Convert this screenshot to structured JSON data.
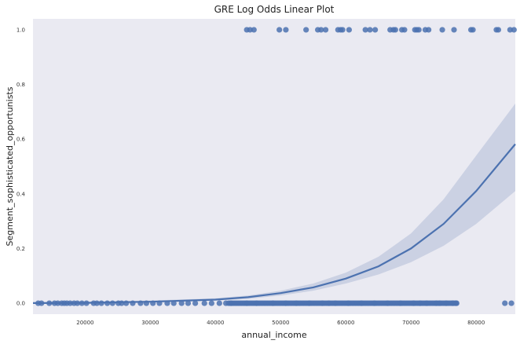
{
  "chart_data": {
    "type": "scatter",
    "title": "GRE Log Odds Linear Plot",
    "xlabel": "annual_income",
    "ylabel": "Segment_sophisticated_opportunists",
    "xlim": [
      12000,
      86000
    ],
    "ylim": [
      -0.04,
      1.04
    ],
    "x_ticks": [
      20000,
      30000,
      40000,
      50000,
      60000,
      70000,
      80000
    ],
    "x_tick_labels": [
      "20000",
      "30000",
      "40000",
      "50000",
      "60000",
      "70000",
      "80000"
    ],
    "y_ticks": [
      0.0,
      0.2,
      0.4,
      0.6,
      0.8,
      1.0
    ],
    "y_tick_labels": [
      "0.0",
      "0.2",
      "0.4",
      "0.6",
      "0.8",
      "1.0"
    ],
    "grid": false,
    "colors": {
      "background": "#EAEAF2",
      "points": "#4C72B0",
      "fit_line": "#4C72B0",
      "ci_band": "#C5CCE0"
    },
    "points_y1_x": [
      44800,
      45300,
      45900,
      49800,
      50800,
      53900,
      55700,
      56200,
      56900,
      58800,
      59200,
      59500,
      60500,
      63000,
      63700,
      64500,
      66800,
      67300,
      67600,
      68600,
      69000,
      70600,
      70900,
      71200,
      72200,
      72700,
      74800,
      76600,
      79200,
      79500,
      83100,
      83400,
      85200,
      85800
    ],
    "points_y0_x": [
      12800,
      13300,
      14500,
      15300,
      15800,
      16400,
      16800,
      17200,
      17700,
      18300,
      18800,
      19500,
      20200,
      21300,
      21800,
      22500,
      23400,
      24200,
      25100,
      25600,
      26300,
      27300,
      28500,
      29400,
      30400,
      31400,
      32600,
      33600,
      34800,
      35800,
      36900,
      38300,
      39400,
      40600,
      41600,
      42400,
      44800,
      46300,
      48800,
      50800,
      52400,
      54400,
      56400,
      57400,
      58400,
      60400,
      62400,
      64400,
      66400,
      68400,
      70400,
      71400,
      72400,
      73900,
      74400,
      75400,
      76400,
      76900,
      84400,
      85400
    ],
    "points_y0_dense_range": [
      42000,
      77000
    ],
    "fit": {
      "x": [
        12000,
        20000,
        30000,
        40000,
        45000,
        50000,
        55000,
        60000,
        65000,
        70000,
        75000,
        80000,
        86000
      ],
      "y": [
        0.0004,
        0.0013,
        0.0053,
        0.013,
        0.022,
        0.037,
        0.058,
        0.09,
        0.135,
        0.2,
        0.29,
        0.41,
        0.582
      ],
      "ci_low": [
        0.0,
        0.0002,
        0.0022,
        0.009,
        0.016,
        0.028,
        0.046,
        0.072,
        0.105,
        0.15,
        0.21,
        0.29,
        0.41
      ],
      "ci_high": [
        0.004,
        0.006,
        0.01,
        0.018,
        0.028,
        0.046,
        0.072,
        0.112,
        0.17,
        0.255,
        0.38,
        0.54,
        0.73
      ]
    }
  }
}
